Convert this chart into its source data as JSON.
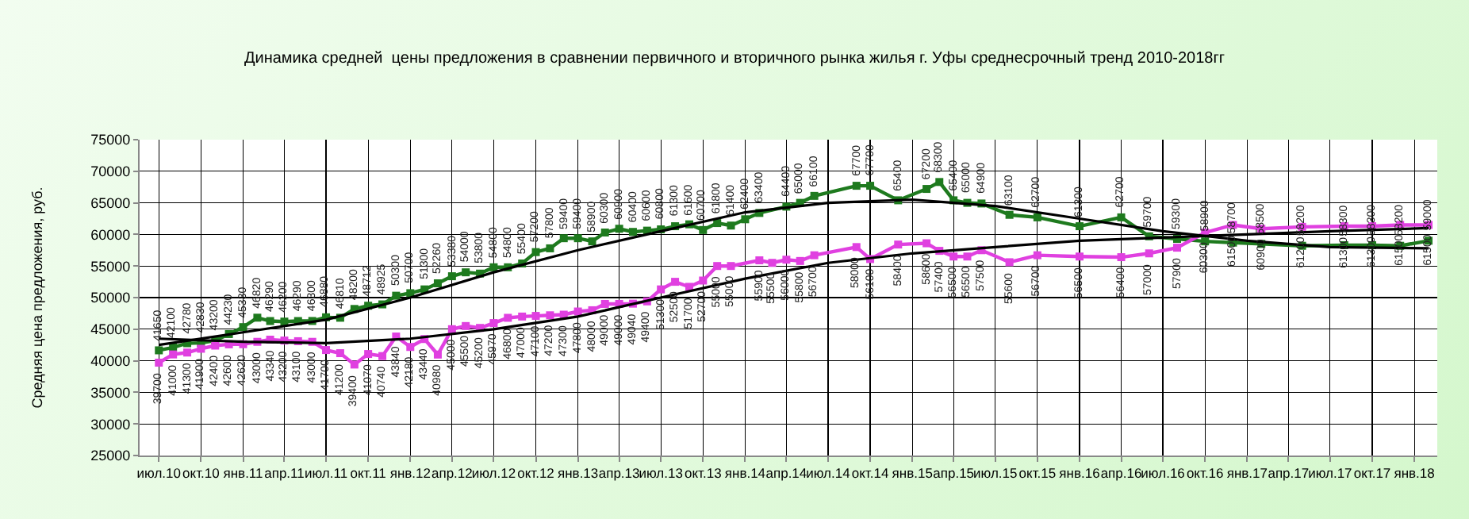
{
  "chart_data": {
    "type": "line",
    "title": "Динамика средней  цены предложения в сравнении первичного и вторичного рынка жилья г. Уфы среднесрочный тренд 2010-2018гг",
    "ylabel": "Средняя цена предложения, руб.",
    "marker": "square",
    "grid": true,
    "xlim": [
      "2010-05-20",
      "2018-02-20"
    ],
    "ylim": [
      25000,
      75000
    ],
    "yticks": [
      25000,
      30000,
      35000,
      40000,
      45000,
      50000,
      55000,
      60000,
      65000,
      70000,
      75000
    ],
    "xticks": [
      {
        "value": "2010-07",
        "label": "июл.10"
      },
      {
        "value": "2010-10",
        "label": "окт.10"
      },
      {
        "value": "2011-01",
        "label": "янв.11"
      },
      {
        "value": "2011-04",
        "label": "апр.11"
      },
      {
        "value": "2011-07",
        "label": "июл.11"
      },
      {
        "value": "2011-10",
        "label": "окт.11"
      },
      {
        "value": "2012-01",
        "label": "янв.12"
      },
      {
        "value": "2012-04",
        "label": "апр.12"
      },
      {
        "value": "2012-07",
        "label": "июл.12"
      },
      {
        "value": "2012-10",
        "label": "окт.12"
      },
      {
        "value": "2013-01",
        "label": "янв.13"
      },
      {
        "value": "2013-04",
        "label": "апр.13"
      },
      {
        "value": "2013-07",
        "label": "июл.13"
      },
      {
        "value": "2013-10",
        "label": "окт.13"
      },
      {
        "value": "2014-01",
        "label": "янв.14"
      },
      {
        "value": "2014-04",
        "label": "апр.14"
      },
      {
        "value": "2014-07",
        "label": "июл.14"
      },
      {
        "value": "2014-10",
        "label": "окт.14"
      },
      {
        "value": "2015-01",
        "label": "янв.15"
      },
      {
        "value": "2015-04",
        "label": "апр.15"
      },
      {
        "value": "2015-07",
        "label": "июл.15"
      },
      {
        "value": "2015-10",
        "label": "окт.15"
      },
      {
        "value": "2016-01",
        "label": "янв.16"
      },
      {
        "value": "2016-04",
        "label": "апр.16"
      },
      {
        "value": "2016-07",
        "label": "июл.16"
      },
      {
        "value": "2016-10",
        "label": "окт.16"
      },
      {
        "value": "2017-01",
        "label": "янв.17"
      },
      {
        "value": "2017-04",
        "label": "апр.17"
      },
      {
        "value": "2017-07",
        "label": "июл.17"
      },
      {
        "value": "2017-10",
        "label": "окт.17"
      },
      {
        "value": "2018-01",
        "label": "янв.18"
      }
    ],
    "series": [
      {
        "color": "#1e7a1e",
        "x": [
          "2010-07",
          "2010-08",
          "2010-09",
          "2010-10",
          "2010-11",
          "2010-12",
          "2011-01",
          "2011-02",
          "2011-03",
          "2011-04",
          "2011-05",
          "2011-06",
          "2011-07",
          "2011-08",
          "2011-09",
          "2011-10",
          "2011-11",
          "2011-12",
          "2012-01",
          "2012-02",
          "2012-03",
          "2012-04",
          "2012-05",
          "2012-06",
          "2012-07",
          "2012-08",
          "2012-09",
          "2012-10",
          "2012-11",
          "2012-12",
          "2013-01",
          "2013-02",
          "2013-03",
          "2013-04",
          "2013-05",
          "2013-06",
          "2013-07",
          "2013-08",
          "2013-09",
          "2013-10",
          "2013-11",
          "2013-12",
          "2014-01",
          "2014-02",
          "2014-04",
          "2014-05",
          "2014-06",
          "2014-09",
          "2014-10",
          "2014-12",
          "2015-02",
          "2015-03",
          "2015-04",
          "2015-05",
          "2015-06",
          "2015-08",
          "2015-10",
          "2016-01",
          "2016-04",
          "2016-06",
          "2016-08",
          "2016-10",
          "2016-12",
          "2017-02",
          "2017-05",
          "2017-08",
          "2017-10",
          "2017-12",
          "2018-02"
        ],
        "values": [
          41650,
          42100,
          42780,
          42830,
          43200,
          44230,
          45330,
          46820,
          46290,
          46200,
          46290,
          46300,
          46880,
          46810,
          48200,
          48712,
          48925,
          50300,
          50700,
          51300,
          52260,
          53380,
          54000,
          53800,
          54800,
          54800,
          55400,
          57200,
          57800,
          59400,
          59400,
          58900,
          60300,
          60900,
          60400,
          60600,
          60800,
          61300,
          61600,
          60700,
          61800,
          61400,
          62400,
          63400,
          64400,
          65000,
          66100,
          67700,
          67700,
          65400,
          67200,
          68300,
          65400,
          65000,
          64900,
          63100,
          62700,
          61300,
          62700,
          59700,
          59300,
          58900,
          58700,
          58500,
          58200,
          58300,
          58300,
          58200,
          59000
        ],
        "value_labels": [
          "41650",
          "42100",
          "42780",
          "42830",
          "43200",
          "44230",
          "45330",
          "46820",
          "46290",
          "46200",
          "46290",
          "46300",
          "46880",
          "46810",
          "48200",
          "48712",
          "48925",
          "50300",
          "50700",
          "51300",
          "52260",
          "53380",
          "54000",
          "53800",
          "54800",
          "54800",
          "55400",
          "57200",
          "57800",
          "59400",
          "59400",
          "58900",
          "60300",
          "60900",
          "60400",
          "60600",
          "60800",
          "61300",
          "61600",
          "60700",
          "61800",
          "61400",
          "62400",
          "63400",
          "64400",
          "65000",
          "66100",
          "67700",
          "67700",
          "65400",
          "67200",
          "68300",
          "65400",
          "65000",
          "64900",
          "63100",
          "62700",
          "61300",
          "62700",
          "59700",
          "59300",
          "58900",
          "58700",
          "58500",
          "58200",
          "58300",
          "58300",
          "58200",
          "59000"
        ]
      },
      {
        "color": "#e040e0",
        "x": [
          "2010-07",
          "2010-08",
          "2010-09",
          "2010-10",
          "2010-11",
          "2010-12",
          "2011-01",
          "2011-02",
          "2011-03",
          "2011-04",
          "2011-05",
          "2011-06",
          "2011-07",
          "2011-08",
          "2011-09",
          "2011-10",
          "2011-11",
          "2011-12",
          "2012-01",
          "2012-02",
          "2012-03",
          "2012-04",
          "2012-05",
          "2012-06",
          "2012-07",
          "2012-08",
          "2012-09",
          "2012-10",
          "2012-11",
          "2012-12",
          "2013-01",
          "2013-02",
          "2013-03",
          "2013-04",
          "2013-05",
          "2013-06",
          "2013-07",
          "2013-08",
          "2013-09",
          "2013-10",
          "2013-11",
          "2013-12",
          "2014-02",
          "2014-03",
          "2014-04",
          "2014-05",
          "2014-06",
          "2014-09",
          "2014-10",
          "2014-12",
          "2015-02",
          "2015-03",
          "2015-04",
          "2015-05",
          "2015-06",
          "2015-08",
          "2015-10",
          "2016-01",
          "2016-04",
          "2016-06",
          "2016-08",
          "2016-10",
          "2016-12",
          "2017-02",
          "2017-05",
          "2017-08",
          "2017-10",
          "2017-12",
          "2018-02"
        ],
        "values": [
          39700,
          41000,
          41300,
          41900,
          42400,
          42600,
          42620,
          43000,
          43340,
          43200,
          43100,
          43000,
          41700,
          41200,
          39400,
          41070,
          40740,
          43840,
          42180,
          43440,
          40980,
          45000,
          45500,
          45200,
          45970,
          46800,
          47000,
          47100,
          47200,
          47300,
          47800,
          48000,
          49000,
          49000,
          49040,
          49400,
          51300,
          52500,
          51700,
          52700,
          55000,
          55000,
          55900,
          55500,
          56000,
          55800,
          56700,
          58000,
          56100,
          58400,
          58600,
          57400,
          56500,
          56500,
          57500,
          55600,
          56700,
          56500,
          56400,
          57000,
          57900,
          60300,
          61500,
          60900,
          61200,
          61300,
          61300,
          61500,
          61500
        ],
        "value_labels": [
          "39700",
          "41000",
          "41300",
          "41900",
          "42400",
          "42600",
          "42620",
          "43000",
          "43340",
          "43200",
          "43100",
          "43000",
          "41700",
          "41200",
          "39400",
          "41070",
          "40740",
          "43840",
          "42180",
          "43440",
          "40980",
          "45000",
          "45500",
          "45200",
          "45970",
          "46800",
          "47000",
          "47100",
          "47200",
          "47300",
          "47800",
          "48000",
          "49000",
          "49000",
          "49040",
          "49400",
          "51300",
          "52500",
          "51700",
          "52700",
          "55000",
          "55000",
          "55900",
          "55500",
          "56000",
          "55800",
          "56700",
          "58000",
          "56100",
          "58400",
          "58600",
          "57400",
          "56500",
          "56500",
          "57500",
          "55600",
          "56700",
          "56500",
          "56400",
          "57000",
          "57900",
          "60300",
          "61500",
          "60900",
          "61200",
          "61300",
          "61300",
          "61500",
          "61500"
        ]
      },
      {
        "color": "#000000",
        "marker": "none",
        "x": [
          "2010-07",
          "2011-01",
          "2011-07",
          "2012-01",
          "2012-07",
          "2013-01",
          "2013-07",
          "2014-01",
          "2014-07",
          "2015-01",
          "2015-07",
          "2016-01",
          "2016-07",
          "2017-01",
          "2017-07",
          "2018-02"
        ],
        "values": [
          42500,
          44500,
          46500,
          50000,
          54000,
          57500,
          60500,
          63500,
          65000,
          65500,
          64500,
          62500,
          60500,
          59000,
          58000,
          57800
        ]
      },
      {
        "color": "#000000",
        "marker": "none",
        "x": [
          "2010-07",
          "2011-01",
          "2011-07",
          "2012-01",
          "2012-07",
          "2013-01",
          "2013-07",
          "2014-01",
          "2014-07",
          "2015-01",
          "2015-07",
          "2016-01",
          "2016-07",
          "2017-01",
          "2017-07",
          "2018-02"
        ],
        "values": [
          43500,
          43000,
          42800,
          43500,
          45000,
          47000,
          50000,
          53000,
          55500,
          57000,
          58000,
          59000,
          59500,
          60000,
          60500,
          61000
        ]
      }
    ]
  }
}
